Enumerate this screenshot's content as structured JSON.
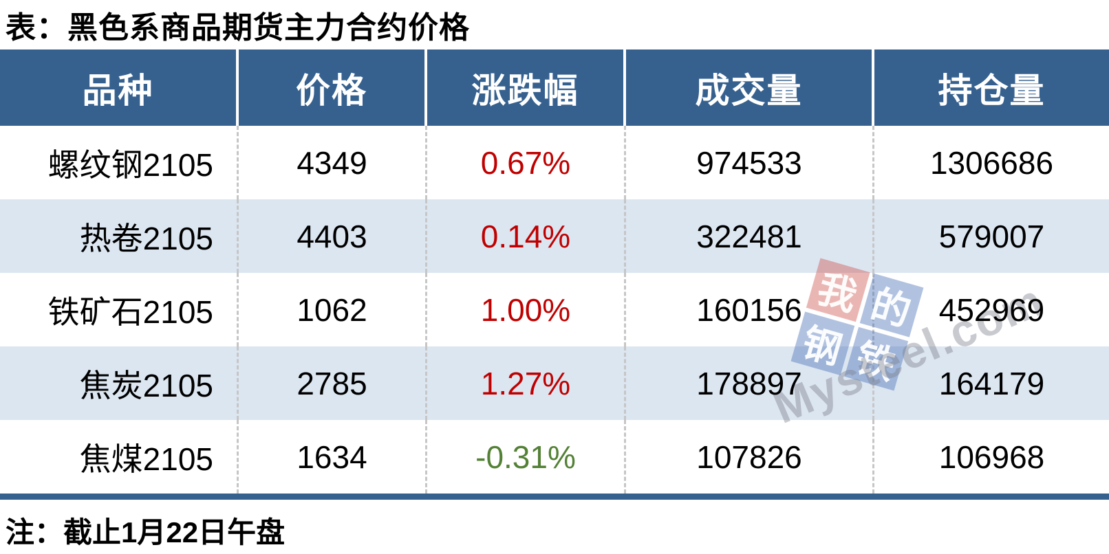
{
  "title": "表：黑色系商品期货主力合约价格",
  "note": "注：截止1月22日午盘",
  "table": {
    "headers": [
      "品种",
      "价格",
      "涨跌幅",
      "成交量",
      "持仓量"
    ],
    "rows": [
      {
        "name": "螺纹钢2105",
        "price": "4349",
        "change": "0.67%",
        "direction": "up",
        "volume": "974533",
        "open_interest": "1306686"
      },
      {
        "name": "热卷2105",
        "price": "4403",
        "change": "0.14%",
        "direction": "up",
        "volume": "322481",
        "open_interest": "579007"
      },
      {
        "name": "铁矿石2105",
        "price": "1062",
        "change": "1.00%",
        "direction": "up",
        "volume": "160156",
        "open_interest": "452969"
      },
      {
        "name": "焦炭2105",
        "price": "2785",
        "change": "1.27%",
        "direction": "up",
        "volume": "178897",
        "open_interest": "164179"
      },
      {
        "name": "焦煤2105",
        "price": "1634",
        "change": "-0.31%",
        "direction": "down",
        "volume": "107826",
        "open_interest": "106968"
      }
    ]
  },
  "watermark": {
    "tiles": [
      {
        "char": "我",
        "color": "red"
      },
      {
        "char": "的",
        "color": "blue"
      },
      {
        "char": "钢",
        "color": "blue"
      },
      {
        "char": "铁",
        "color": "blue"
      }
    ],
    "brand": "Mysteel.com"
  },
  "colors": {
    "header_bg": "#36618F",
    "alt_row_bg": "#DCE6F1",
    "up_text": "#C00000",
    "down_text": "#538135",
    "bottom_bar": "#36618F"
  },
  "chart_data": {
    "type": "table",
    "title": "表：黑色系商品期货主力合约价格",
    "columns": [
      "品种",
      "价格",
      "涨跌幅",
      "成交量",
      "持仓量"
    ],
    "rows": [
      [
        "螺纹钢2105",
        4349,
        "0.67%",
        974533,
        1306686
      ],
      [
        "热卷2105",
        4403,
        "0.14%",
        322481,
        579007
      ],
      [
        "铁矿石2105",
        1062,
        "1.00%",
        160156,
        452969
      ],
      [
        "焦炭2105",
        2785,
        "1.27%",
        178897,
        164179
      ],
      [
        "焦煤2105",
        1634,
        "-0.31%",
        107826,
        106968
      ]
    ],
    "note": "注：截止1月22日午盘",
    "change_colors": {
      "positive": "#C00000",
      "negative": "#538135"
    }
  }
}
